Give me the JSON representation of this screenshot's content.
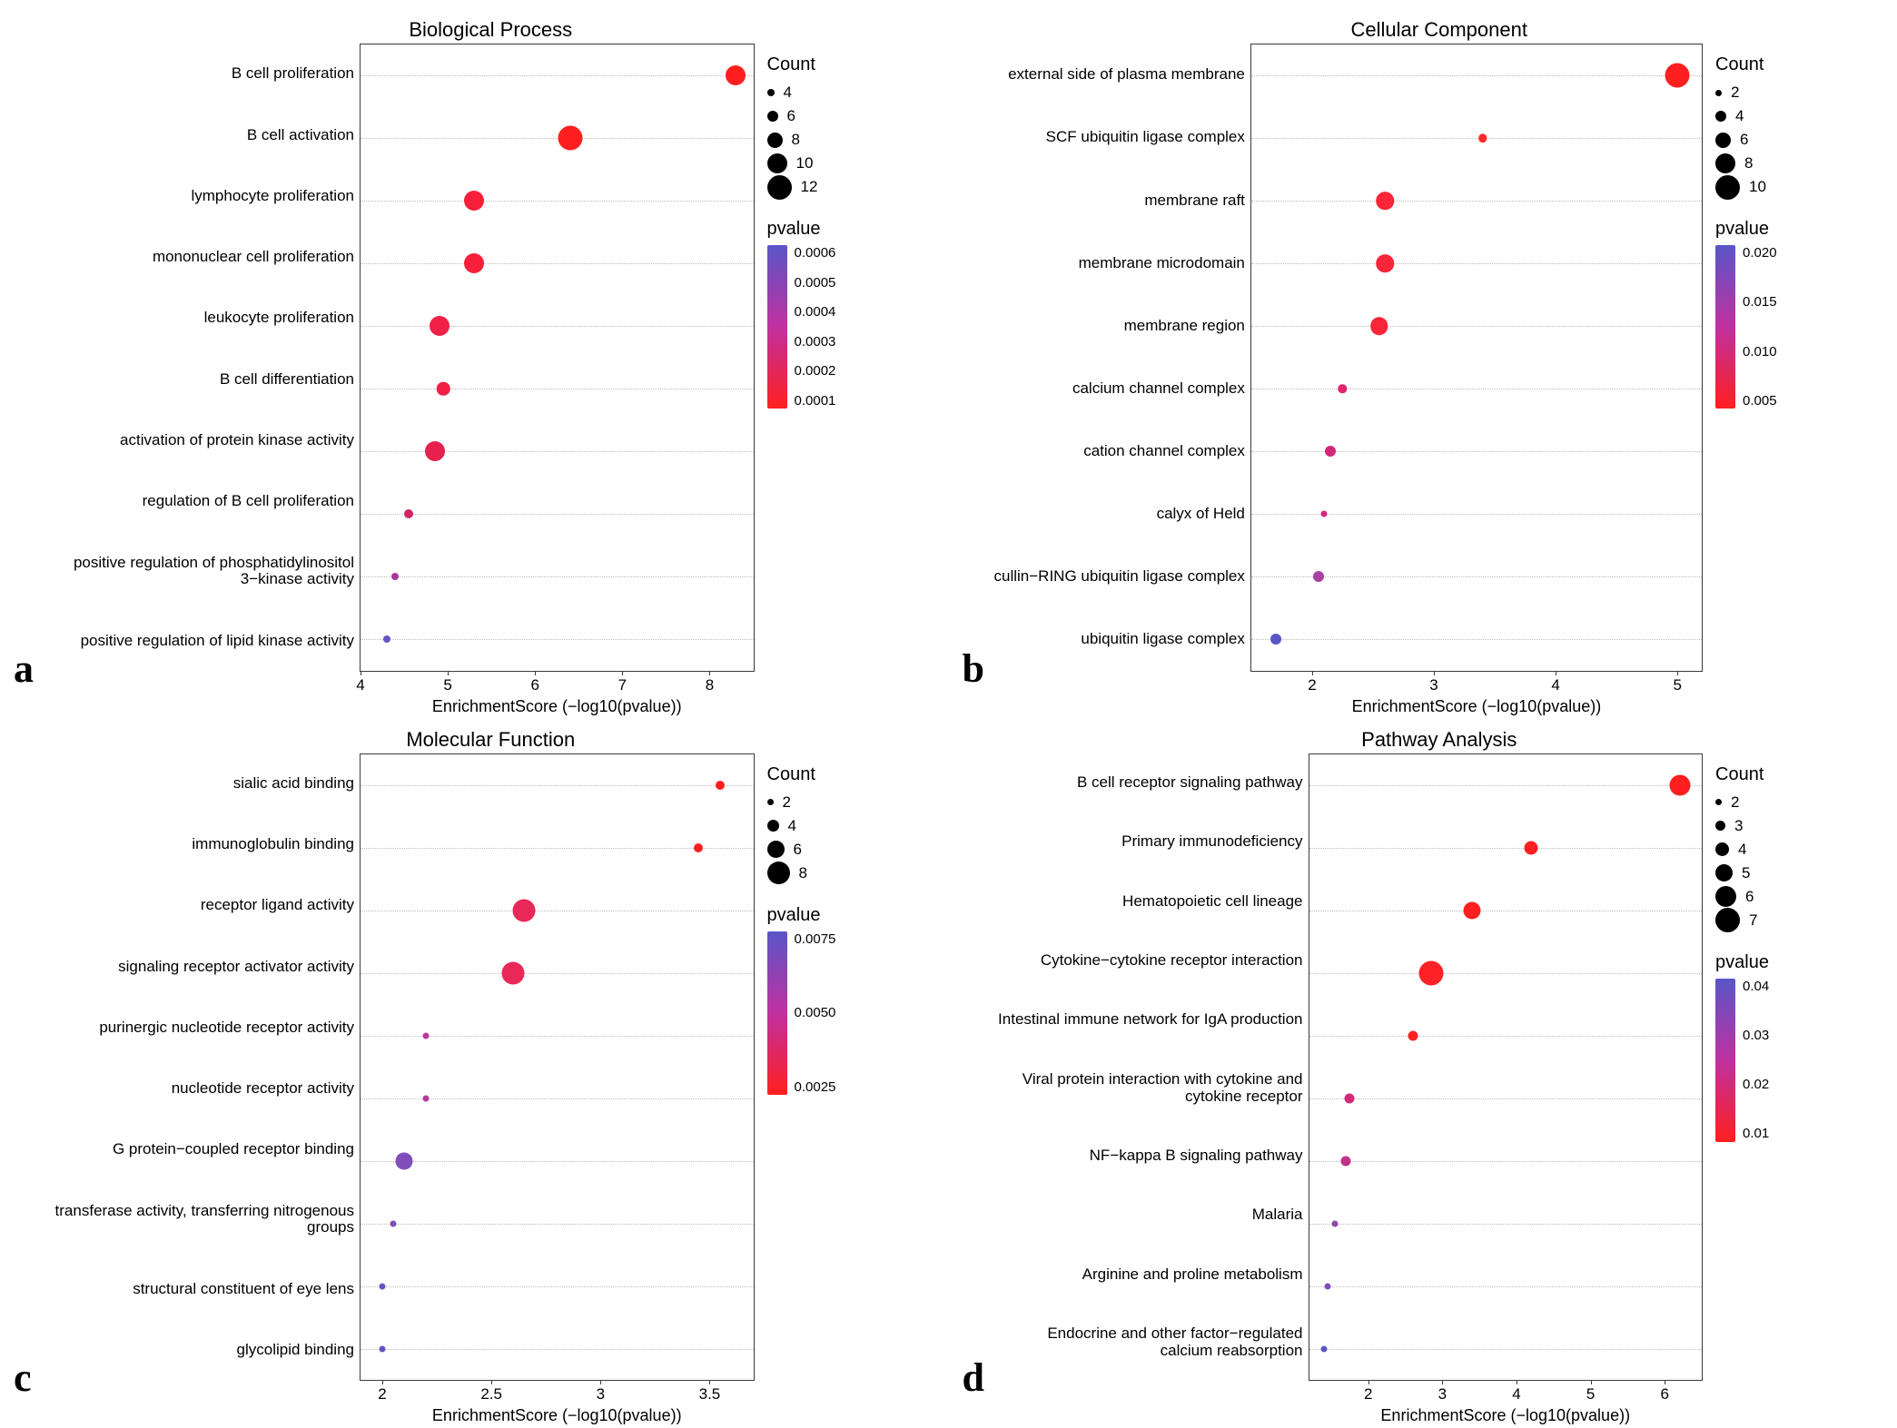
{
  "figure": {
    "background_color": "#ffffff",
    "grid_color": "#bdbdbd",
    "border_color": "#3a3a3a",
    "xlabel": "EnrichmentScore (−log10(pvalue))",
    "panels": [
      {
        "letter": "a",
        "title": "Biological Process",
        "xlim": [
          4,
          8.5
        ],
        "xticks": [
          4,
          5,
          6,
          7,
          8
        ],
        "count_legend": [
          4,
          6,
          8,
          10,
          12
        ],
        "count_legend_sizes": [
          8,
          12,
          17,
          22,
          27
        ],
        "pvalue_legend": [
          "0.0006",
          "0.0005",
          "0.0004",
          "0.0003",
          "0.0002",
          "0.0001"
        ],
        "color_top": "#5a56c8",
        "color_bot": "#ff1f1f",
        "rows": [
          {
            "label": "B cell proliferation",
            "x": 8.3,
            "count": 10,
            "color": "#ff1f1f"
          },
          {
            "label": "B cell activation",
            "x": 6.4,
            "count": 12,
            "color": "#ff1f1f"
          },
          {
            "label": "lymphocyte proliferation",
            "x": 5.3,
            "count": 10,
            "color": "#f81f3a"
          },
          {
            "label": "mononuclear cell proliferation",
            "x": 5.3,
            "count": 10,
            "color": "#f81f3a"
          },
          {
            "label": "leukocyte proliferation",
            "x": 4.9,
            "count": 10,
            "color": "#f02046"
          },
          {
            "label": "B cell differentiation",
            "x": 4.95,
            "count": 7,
            "color": "#f02046"
          },
          {
            "label": "activation of protein kinase activity",
            "x": 4.85,
            "count": 10,
            "color": "#e8204e"
          },
          {
            "label": "regulation of B cell proliferation",
            "x": 4.55,
            "count": 5,
            "color": "#d22468"
          },
          {
            "label": "positive regulation of phosphatidylinositol 3−kinase activity",
            "x": 4.4,
            "count": 4,
            "color": "#a43a9a"
          },
          {
            "label": "positive regulation of lipid kinase activity",
            "x": 4.3,
            "count": 4,
            "color": "#6a52c2"
          }
        ]
      },
      {
        "letter": "b",
        "title": "Cellular Component",
        "xlim": [
          1.5,
          5.2
        ],
        "xticks": [
          2,
          3,
          4,
          5
        ],
        "count_legend": [
          2,
          4,
          6,
          8,
          10
        ],
        "count_legend_sizes": [
          7,
          12,
          17,
          22,
          27
        ],
        "pvalue_legend": [
          "0.020",
          "0.015",
          "0.010",
          "0.005"
        ],
        "color_top": "#5a56c8",
        "color_bot": "#ff1f1f",
        "rows": [
          {
            "label": "external side of plasma membrane",
            "x": 5.0,
            "count": 10,
            "color": "#ff1f1f"
          },
          {
            "label": "SCF ubiquitin ligase complex",
            "x": 3.4,
            "count": 3,
            "color": "#ff2a2a"
          },
          {
            "label": "membrane raft",
            "x": 2.6,
            "count": 7,
            "color": "#fa2538"
          },
          {
            "label": "membrane microdomain",
            "x": 2.6,
            "count": 7,
            "color": "#fa2538"
          },
          {
            "label": "membrane region",
            "x": 2.55,
            "count": 7,
            "color": "#fa2538"
          },
          {
            "label": "calcium channel complex",
            "x": 2.25,
            "count": 3,
            "color": "#e0256a"
          },
          {
            "label": "cation channel complex",
            "x": 2.15,
            "count": 4,
            "color": "#d6287a"
          },
          {
            "label": "calyx of Held",
            "x": 2.1,
            "count": 2,
            "color": "#d02a82"
          },
          {
            "label": "cullin−RING ubiquitin ligase complex",
            "x": 2.05,
            "count": 4,
            "color": "#aa40a4"
          },
          {
            "label": "ubiquitin ligase complex",
            "x": 1.7,
            "count": 4,
            "color": "#5a56c8"
          }
        ]
      },
      {
        "letter": "c",
        "title": "Molecular Function",
        "xlim": [
          1.9,
          3.7
        ],
        "xticks": [
          2.0,
          2.5,
          3.0,
          3.5
        ],
        "count_legend": [
          2,
          4,
          6,
          8
        ],
        "count_legend_sizes": [
          7,
          13,
          19,
          25
        ],
        "pvalue_legend": [
          "0.0075",
          "0.0050",
          "0.0025"
        ],
        "color_top": "#5a56c8",
        "color_bot": "#ff1f1f",
        "rows": [
          {
            "label": "sialic acid binding",
            "x": 3.55,
            "count": 3,
            "color": "#ff1f1f"
          },
          {
            "label": "immunoglobulin binding",
            "x": 3.45,
            "count": 3,
            "color": "#ff1f1f"
          },
          {
            "label": "receptor ligand activity",
            "x": 2.65,
            "count": 8,
            "color": "#e82858"
          },
          {
            "label": "signaling receptor activator activity",
            "x": 2.6,
            "count": 8,
            "color": "#e82858"
          },
          {
            "label": "purinergic nucleotide receptor activity",
            "x": 2.2,
            "count": 2,
            "color": "#b53a9e"
          },
          {
            "label": "nucleotide receptor activity",
            "x": 2.2,
            "count": 2,
            "color": "#b53a9e"
          },
          {
            "label": "G protein−coupled receptor binding",
            "x": 2.1,
            "count": 6,
            "color": "#804dba"
          },
          {
            "label": "transferase activity, transferring nitrogenous groups",
            "x": 2.05,
            "count": 2,
            "color": "#804dba"
          },
          {
            "label": "structural constituent of eye lens",
            "x": 2.0,
            "count": 2,
            "color": "#6a52c0"
          },
          {
            "label": "glycolipid binding",
            "x": 2.0,
            "count": 2,
            "color": "#6055c5"
          }
        ]
      },
      {
        "letter": "d",
        "title": "Pathway Analysis",
        "xlim": [
          1.2,
          6.5
        ],
        "xticks": [
          2,
          3,
          4,
          5,
          6
        ],
        "count_legend": [
          2,
          3,
          4,
          5,
          6,
          7
        ],
        "count_legend_sizes": [
          7,
          11,
          15,
          19,
          23,
          27
        ],
        "pvalue_legend": [
          "0.04",
          "0.03",
          "0.02",
          "0.01"
        ],
        "color_top": "#5a56c8",
        "color_bot": "#ff1f1f",
        "rows": [
          {
            "label": "B cell receptor signaling pathway",
            "x": 6.2,
            "count": 6,
            "color": "#ff1f1f"
          },
          {
            "label": "Primary immunodeficiency",
            "x": 4.2,
            "count": 4,
            "color": "#ff1f1f"
          },
          {
            "label": "Hematopoietic cell lineage",
            "x": 3.4,
            "count": 5,
            "color": "#ff1f1f"
          },
          {
            "label": "Cytokine−cytokine receptor interaction",
            "x": 2.85,
            "count": 7,
            "color": "#fe2226"
          },
          {
            "label": "Intestinal immune network for IgA production",
            "x": 2.6,
            "count": 3,
            "color": "#fe2226"
          },
          {
            "label": "Viral protein interaction with cytokine and cytokine receptor",
            "x": 1.75,
            "count": 3,
            "color": "#d02a7a"
          },
          {
            "label": "NF−kappa B signaling pathway",
            "x": 1.7,
            "count": 3,
            "color": "#c03088"
          },
          {
            "label": "Malaria",
            "x": 1.55,
            "count": 2,
            "color": "#9048ac"
          },
          {
            "label": "Arginine and proline metabolism",
            "x": 1.45,
            "count": 2,
            "color": "#7850b8"
          },
          {
            "label": "Endocrine and other factor−regulated calcium reabsorption",
            "x": 1.4,
            "count": 2,
            "color": "#6055c5"
          }
        ]
      }
    ]
  }
}
